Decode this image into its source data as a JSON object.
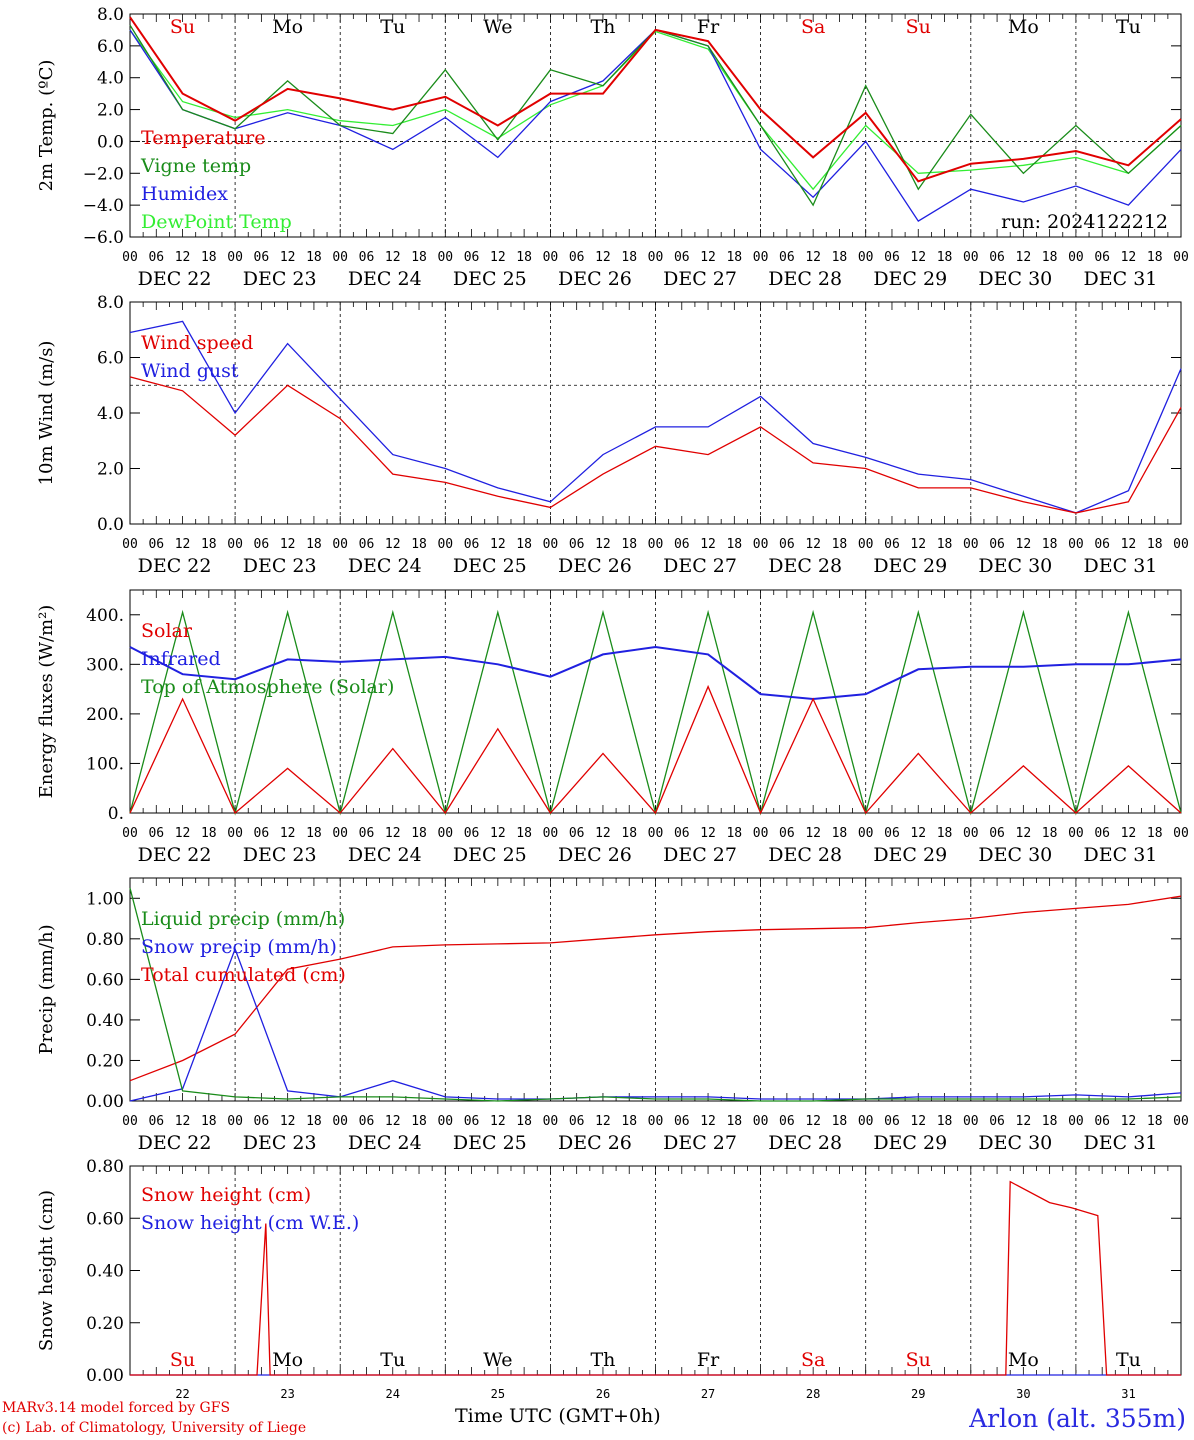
{
  "days": [
    "DEC 22",
    "DEC 23",
    "DEC 24",
    "DEC 25",
    "DEC 26",
    "DEC 27",
    "DEC 28",
    "DEC 29",
    "DEC 30",
    "DEC 31"
  ],
  "weekdays": [
    {
      "label": "Su",
      "color": "#e00000"
    },
    {
      "label": "Mo",
      "color": "#000000"
    },
    {
      "label": "Tu",
      "color": "#000000"
    },
    {
      "label": "We",
      "color": "#000000"
    },
    {
      "label": "Th",
      "color": "#000000"
    },
    {
      "label": "Fr",
      "color": "#000000"
    },
    {
      "label": "Sa",
      "color": "#e00000"
    },
    {
      "label": "Su",
      "color": "#e00000"
    },
    {
      "label": "Mo",
      "color": "#000000"
    },
    {
      "label": "Tu",
      "color": "#000000"
    }
  ],
  "hour_ticks": [
    "00",
    "06",
    "12",
    "18"
  ],
  "day_numbers": [
    "22",
    "23",
    "24",
    "25",
    "26",
    "27",
    "28",
    "29",
    "30",
    "31"
  ],
  "xaxis_title": "Time UTC (GMT+0h)",
  "run_label": "run: 2024122212",
  "credits": {
    "line1": "MARv3.14 model forced by GFS",
    "line2": "(c) Lab. of Climatology, University of Liege"
  },
  "station": "Arlon (alt. 355m)",
  "colors": {
    "red": "#e00000",
    "green": "#1a8c1a",
    "blue": "#2020e0",
    "lightgreen": "#33ee33"
  },
  "chart_data": [
    {
      "type": "line",
      "ylabel": "2m Temp. (ºC)",
      "ylim": [
        -6,
        8
      ],
      "yticks": [
        "8.0",
        "6.0",
        "4.0",
        "2.0",
        "0.0",
        "−2.0",
        "−4.0",
        "−6.0"
      ],
      "ref_line": 0,
      "x": [
        0,
        12,
        24,
        36,
        48,
        60,
        72,
        84,
        96,
        108,
        120,
        132,
        144,
        156,
        168,
        180,
        192,
        204,
        216,
        228,
        240
      ],
      "series": [
        {
          "name": "Temperature",
          "values": [
            7.8,
            3.0,
            1.3,
            3.3,
            2.7,
            2.0,
            2.8,
            1.0,
            3.0,
            3.0,
            7.0,
            6.3,
            2.0,
            -1.0,
            1.8,
            -2.5,
            -1.4,
            -1.1,
            -0.6,
            -1.5,
            1.4
          ]
        },
        {
          "name": "Vigne temp",
          "values": [
            7.3,
            2.0,
            0.8,
            3.8,
            1.0,
            0.5,
            4.5,
            0.1,
            4.5,
            3.5,
            7.0,
            6.0,
            1.0,
            -4.0,
            3.5,
            -3.0,
            1.7,
            -2.0,
            1.0,
            -2.0,
            1.0
          ]
        },
        {
          "name": "Humidex",
          "values": [
            7.0,
            2.0,
            0.8,
            1.8,
            1.0,
            -0.5,
            1.5,
            -1.0,
            2.5,
            3.8,
            7.0,
            6.0,
            -0.5,
            -3.5,
            0.0,
            -5.0,
            -3.0,
            -3.8,
            -2.8,
            -4.0,
            -0.5
          ]
        },
        {
          "name": "DewPoint Temp",
          "values": [
            7.0,
            2.5,
            1.5,
            2.0,
            1.3,
            1.0,
            2.0,
            0.2,
            2.3,
            3.5,
            6.9,
            5.8,
            1.0,
            -3.0,
            1.0,
            -2.0,
            -1.8,
            -1.5,
            -1.0,
            -2.0,
            1.0
          ]
        }
      ]
    },
    {
      "type": "line",
      "ylabel": "10m Wind (m/s)",
      "ylim": [
        0,
        8
      ],
      "yticks": [
        "8.0",
        "6.0",
        "4.0",
        "2.0",
        "0.0"
      ],
      "ref_line": 5,
      "x": [
        0,
        12,
        24,
        36,
        48,
        60,
        72,
        84,
        96,
        108,
        120,
        132,
        144,
        156,
        168,
        180,
        192,
        204,
        216,
        228,
        240
      ],
      "series": [
        {
          "name": "Wind speed",
          "values": [
            5.3,
            4.8,
            3.2,
            5.0,
            3.8,
            1.8,
            1.5,
            1.0,
            0.6,
            1.8,
            2.8,
            2.5,
            3.5,
            2.2,
            2.0,
            1.3,
            1.3,
            0.8,
            0.4,
            0.8,
            4.2
          ]
        },
        {
          "name": "Wind gust",
          "values": [
            6.9,
            7.3,
            4.0,
            6.5,
            4.5,
            2.5,
            2.0,
            1.3,
            0.8,
            2.5,
            3.5,
            3.5,
            4.6,
            2.9,
            2.4,
            1.8,
            1.6,
            1.0,
            0.4,
            1.2,
            5.6
          ]
        }
      ]
    },
    {
      "type": "line",
      "ylabel": "Energy fluxes (W/m²)",
      "ylim": [
        0,
        450
      ],
      "yticks": [
        "400.",
        "300.",
        "200.",
        "100.",
        "0."
      ],
      "x": [
        0,
        12,
        24,
        36,
        48,
        60,
        72,
        84,
        96,
        108,
        120,
        132,
        144,
        156,
        168,
        180,
        192,
        204,
        216,
        228,
        240
      ],
      "series": [
        {
          "name": "Solar",
          "values": [
            0,
            230,
            0,
            90,
            0,
            130,
            0,
            170,
            0,
            120,
            0,
            255,
            0,
            230,
            0,
            120,
            0,
            95,
            0,
            95,
            0
          ]
        },
        {
          "name": "Infrared",
          "values": [
            335,
            280,
            270,
            310,
            305,
            310,
            315,
            300,
            275,
            320,
            335,
            320,
            240,
            230,
            240,
            290,
            295,
            295,
            300,
            300,
            310
          ]
        },
        {
          "name": "Top of Atmosphere (Solar)",
          "values": [
            0,
            405,
            0,
            405,
            0,
            405,
            0,
            405,
            0,
            405,
            0,
            405,
            0,
            405,
            0,
            405,
            0,
            405,
            0,
            405,
            0
          ]
        }
      ]
    },
    {
      "type": "line",
      "ylabel": "Precip (mm/h)",
      "ylim": [
        0,
        1.1
      ],
      "yticks": [
        "1.00",
        "0.80",
        "0.60",
        "0.40",
        "0.20",
        "0.00"
      ],
      "x": [
        0,
        12,
        24,
        36,
        48,
        60,
        72,
        84,
        96,
        108,
        120,
        132,
        144,
        156,
        168,
        180,
        192,
        204,
        216,
        228,
        240
      ],
      "series": [
        {
          "name": "Liquid precip (mm/h)",
          "values": [
            1.05,
            0.05,
            0.02,
            0.01,
            0.02,
            0.02,
            0.01,
            0.0,
            0.01,
            0.02,
            0.01,
            0.01,
            0.0,
            0.0,
            0.01,
            0.01,
            0.01,
            0.01,
            0.01,
            0.01,
            0.02
          ]
        },
        {
          "name": "Snow precip (mm/h)",
          "values": [
            0.0,
            0.06,
            0.75,
            0.05,
            0.02,
            0.1,
            0.02,
            0.01,
            0.01,
            0.02,
            0.02,
            0.02,
            0.01,
            0.01,
            0.01,
            0.02,
            0.02,
            0.02,
            0.03,
            0.02,
            0.04
          ]
        },
        {
          "name": "Total cumulated (cm)",
          "values": [
            0.1,
            0.2,
            0.33,
            0.65,
            0.7,
            0.76,
            0.77,
            0.775,
            0.78,
            0.8,
            0.82,
            0.835,
            0.845,
            0.85,
            0.855,
            0.88,
            0.9,
            0.93,
            0.95,
            0.97,
            1.01
          ]
        }
      ]
    },
    {
      "type": "line",
      "ylabel": "Snow height (cm)",
      "ylim": [
        0,
        0.8
      ],
      "yticks": [
        "0.80",
        "0.60",
        "0.40",
        "0.20",
        "0.00"
      ],
      "series": [
        {
          "name": "Snow height (cm)",
          "x": [
            0,
            29,
            31,
            32,
            33,
            200,
            201,
            210,
            215,
            221,
            223,
            240
          ],
          "values": [
            0,
            0,
            0.58,
            0,
            0,
            0,
            0.74,
            0.66,
            0.64,
            0.61,
            0,
            0
          ]
        },
        {
          "name": "Snow height (cm W.E.)",
          "x": [
            0,
            240
          ],
          "values": [
            0,
            0
          ]
        }
      ]
    }
  ]
}
